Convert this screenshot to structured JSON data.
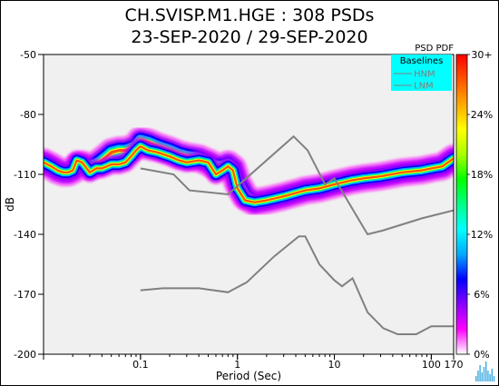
{
  "header": {
    "title_line1": "CH.SVISP.M1.HGE : 308 PSDs",
    "title_line2": "23-SEP-2020 / 29-SEP-2020"
  },
  "chart_data": {
    "type": "heatmap",
    "title": "CH.SVISP.M1.HGE : 308 PSDs",
    "subtitle": "23-SEP-2020 / 29-SEP-2020",
    "xlabel": "Period (Sec)",
    "ylabel": "dB",
    "x_scale": "log",
    "xlim": [
      0.01,
      170
    ],
    "ylim": [
      -200,
      -50
    ],
    "x_ticks": [
      {
        "value": 0.1,
        "label": "0.1"
      },
      {
        "value": 1,
        "label": "1"
      },
      {
        "value": 10,
        "label": "10"
      },
      {
        "value": 100,
        "label": "100"
      },
      {
        "value": 170,
        "label": "170"
      }
    ],
    "y_ticks": [
      -50,
      -80,
      -110,
      -140,
      -170,
      -200
    ],
    "background_color": "#f0f0f0",
    "pdf_title": "PSD PDF",
    "colorbar": {
      "range_percent": [
        0,
        30
      ],
      "ticks": [
        "30+",
        "24%",
        "18%",
        "12%",
        "6%",
        "0%"
      ],
      "colors": [
        "#ffffff",
        "#ff00ff",
        "#8a00ff",
        "#0000ff",
        "#00aaff",
        "#00ffff",
        "#00ff88",
        "#00ff00",
        "#aaff00",
        "#ffff00",
        "#ffaa00",
        "#ff5500",
        "#ff0000"
      ]
    },
    "legend": {
      "title": "Baselines",
      "entries": [
        "HNM",
        "LNM"
      ],
      "background": "#00ffff",
      "placement": "top-right"
    },
    "baselines": {
      "hnm": {
        "name": "HNM",
        "color": "#808080",
        "points": [
          [
            0.1,
            -107
          ],
          [
            0.22,
            -110
          ],
          [
            0.32,
            -118
          ],
          [
            0.8,
            -120
          ],
          [
            3.8,
            -91
          ],
          [
            5.3,
            -98
          ],
          [
            8,
            -115
          ],
          [
            10,
            -112
          ],
          [
            22,
            -140
          ],
          [
            32,
            -138
          ],
          [
            80,
            -132
          ],
          [
            170,
            -128
          ]
        ]
      },
      "lnm": {
        "name": "LNM",
        "color": "#808080",
        "points": [
          [
            0.1,
            -168
          ],
          [
            0.17,
            -167
          ],
          [
            0.4,
            -167
          ],
          [
            0.8,
            -169
          ],
          [
            1.25,
            -164
          ],
          [
            2.4,
            -151
          ],
          [
            4.3,
            -141
          ],
          [
            5,
            -141
          ],
          [
            7,
            -155
          ],
          [
            10,
            -163
          ],
          [
            12,
            -166
          ],
          [
            15.4,
            -162
          ],
          [
            22,
            -179
          ],
          [
            32,
            -187
          ],
          [
            45,
            -190
          ],
          [
            70,
            -190
          ],
          [
            100,
            -186
          ],
          [
            170,
            -186
          ]
        ]
      }
    },
    "pdf_bands": [
      {
        "x": [
          0.01,
          0.012,
          0.014,
          0.016,
          0.018,
          0.02,
          0.022,
          0.025,
          0.03,
          0.035,
          0.04,
          0.045,
          0.05,
          0.06,
          0.07,
          0.08,
          0.09,
          0.1,
          0.12,
          0.15,
          0.2,
          0.25,
          0.3,
          0.4,
          0.5,
          0.6,
          0.7,
          0.8,
          0.9,
          1,
          1.2,
          1.5,
          2,
          3,
          5,
          7,
          10,
          15,
          20,
          30,
          50,
          80,
          100,
          130,
          170
        ],
        "y": [
          -104,
          -106,
          -108,
          -109,
          -109,
          -108,
          -106,
          -105,
          -106,
          -105,
          -103,
          -101,
          -99,
          -98,
          -98,
          -97,
          -96,
          -93,
          -94,
          -96,
          -98,
          -100,
          -101,
          -102,
          -104,
          -106,
          -106,
          -105,
          -107,
          -114,
          -121,
          -124,
          -123,
          -121,
          -118,
          -117,
          -115,
          -113,
          -112,
          -111,
          -109,
          -108,
          -107,
          -106,
          -102
        ],
        "core_half_width": 2,
        "halo_half_width": 7
      },
      {
        "x": [
          0.01,
          0.012,
          0.014,
          0.016,
          0.018,
          0.02,
          0.022,
          0.025,
          0.03,
          0.035,
          0.04,
          0.045,
          0.05,
          0.06,
          0.07,
          0.08,
          0.09,
          0.1,
          0.12,
          0.15,
          0.2,
          0.25,
          0.3,
          0.4,
          0.5,
          0.6,
          0.7,
          0.8,
          0.9,
          1,
          1.2,
          1.5,
          2,
          3,
          5,
          7,
          10,
          15,
          20,
          30,
          50,
          80,
          100,
          130,
          170
        ],
        "y": [
          -104,
          -106,
          -108,
          -109,
          -109,
          -108,
          -103,
          -104,
          -109,
          -107,
          -107,
          -106,
          -105,
          -105,
          -104,
          -101,
          -98,
          -96,
          -98,
          -99,
          -101,
          -103,
          -104,
          -103,
          -104,
          -110,
          -108,
          -106,
          -108,
          -117,
          -123,
          -124,
          -123,
          -121,
          -118,
          -117,
          -115,
          -113,
          -112,
          -111,
          -109,
          -108,
          -107,
          -106,
          -102
        ],
        "core_half_width": 1.5,
        "halo_half_width": 5
      }
    ]
  },
  "footer": {
    "logo": "waveform-logo-icon",
    "logo_color": "#3fa9e0"
  }
}
